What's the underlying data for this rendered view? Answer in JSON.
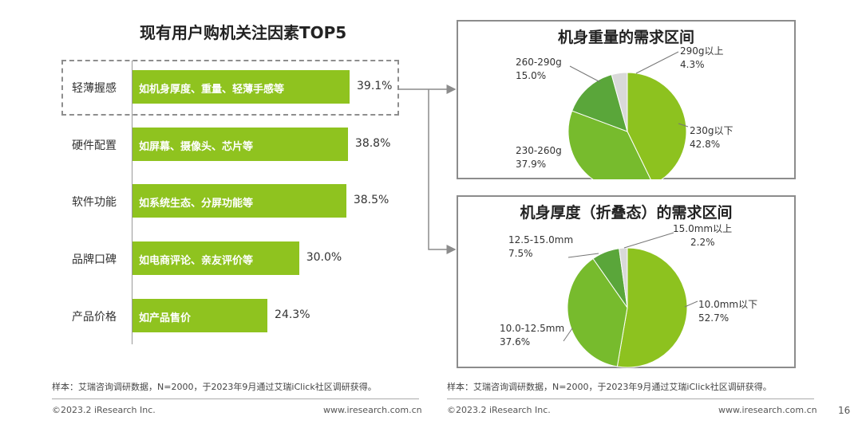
{
  "left_chart": {
    "title": "现有用户购机关注因素TOP5",
    "chart_data": {
      "type": "bar",
      "orientation": "horizontal",
      "title": "现有用户购机关注因素TOP5",
      "categories": [
        "轻薄握感",
        "硬件配置",
        "软件功能",
        "品牌口碑",
        "产品价格"
      ],
      "descriptions": [
        "如机身厚度、重量、轻薄手感等",
        "如屏幕、摄像头、芯片等",
        "如系统生态、分屏功能等",
        "如电商评论、亲友评价等",
        "如产品售价"
      ],
      "values": [
        39.1,
        38.8,
        38.5,
        30.0,
        24.3
      ],
      "value_labels": [
        "39.1%",
        "38.8%",
        "38.5%",
        "30.0%",
        "24.3%"
      ],
      "unit": "%",
      "highlighted_category": "轻薄握感",
      "color": "#8fc31f"
    }
  },
  "weight_chart": {
    "title": "机身重量的需求区间",
    "chart_data": {
      "type": "pie",
      "title": "机身重量的需求区间",
      "categories": [
        "230g以下",
        "230-260g",
        "260-290g",
        "290g以上"
      ],
      "values": [
        42.8,
        37.9,
        15.0,
        4.3
      ],
      "value_labels": [
        "42.8%",
        "37.9%",
        "15.0%",
        "4.3%"
      ],
      "colors": [
        "#8dc21f",
        "#77bb2d",
        "#5aa63a",
        "#d9d9d9"
      ]
    }
  },
  "thickness_chart": {
    "title": "机身厚度（折叠态）的需求区间",
    "chart_data": {
      "type": "pie",
      "title": "机身厚度（折叠态）的需求区间",
      "categories": [
        "10.0mm以下",
        "10.0-12.5mm",
        "12.5-15.0mm",
        "15.0mm以上"
      ],
      "values": [
        52.7,
        37.6,
        7.5,
        2.2
      ],
      "value_labels": [
        "52.7%",
        "37.6%",
        "7.5%",
        "2.2%"
      ],
      "colors": [
        "#8dc21f",
        "#77bb2d",
        "#5aa63a",
        "#d9d9d9"
      ]
    }
  },
  "notes": {
    "left": "样本：艾瑞咨询调研数据，N=2000，于2023年9月通过艾瑞iClick社区调研获得。",
    "right": "样本：艾瑞咨询调研数据，N=2000，于2023年9月通过艾瑞iClick社区调研获得。"
  },
  "footer": {
    "left_copyright": "©2023.2 iResearch Inc.",
    "left_url": "www.iresearch.com.cn",
    "right_copyright": "©2023.2 iResearch Inc.",
    "right_url": "www.iresearch.com.cn",
    "page_number": "16"
  }
}
